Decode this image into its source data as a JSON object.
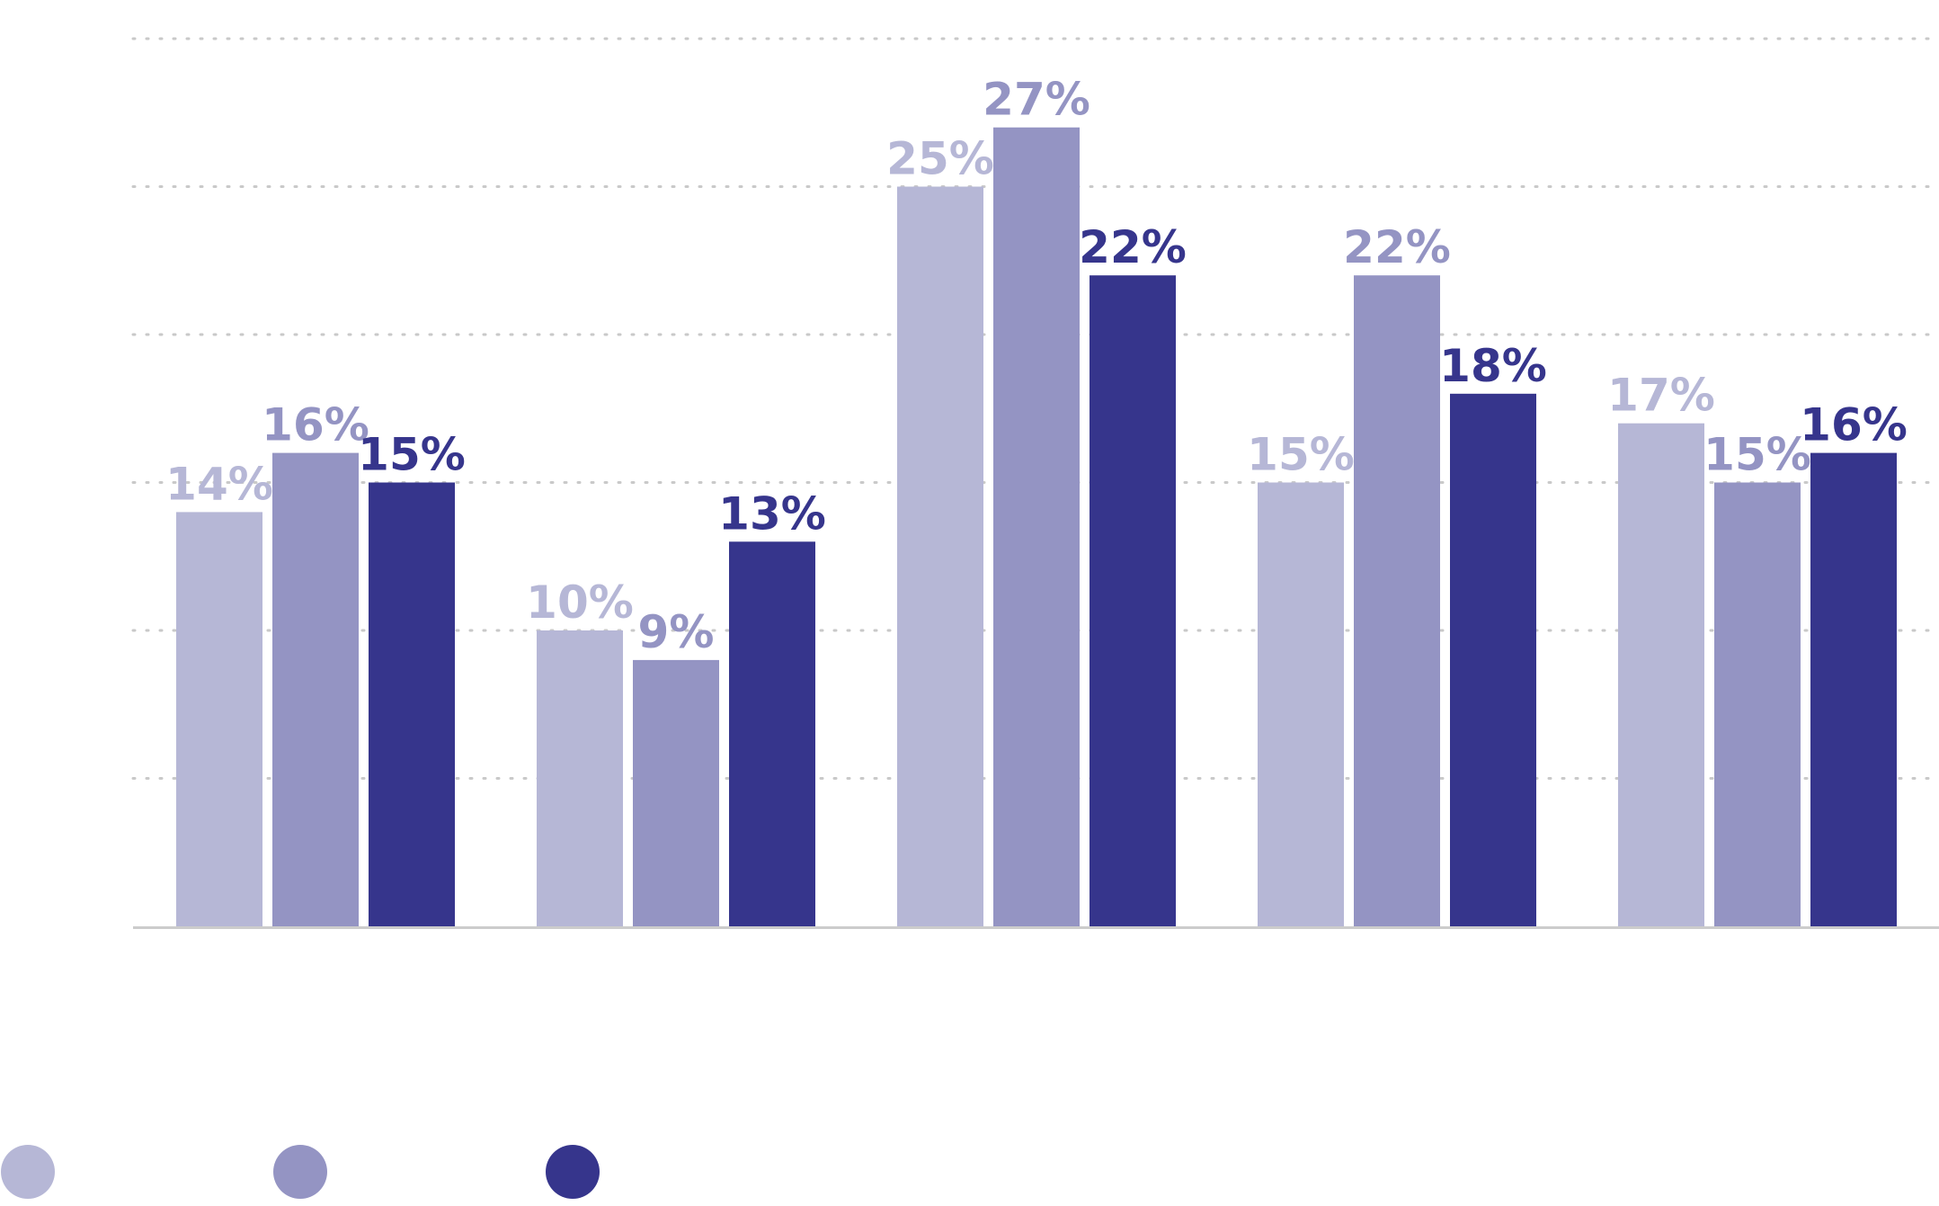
{
  "chart_data": {
    "type": "bar",
    "title": "",
    "xlabel": "",
    "ylabel": "",
    "ylim": [
      0,
      30
    ],
    "grid": true,
    "y_gridline_step": 5,
    "legend_placement": "bottom-left",
    "value_format": "percent",
    "categories": [
      "",
      "",
      "",
      "",
      ""
    ],
    "series": [
      {
        "color": "#b6b7d6",
        "values": [
          14,
          10,
          25,
          15,
          17
        ],
        "labels": [
          "14%",
          "10%",
          "25%",
          "15%",
          "17%"
        ]
      },
      {
        "color": "#9494c3",
        "values": [
          16,
          9,
          27,
          22,
          15
        ],
        "labels": [
          "16%",
          "9%",
          "27%",
          "22%",
          "15%"
        ]
      },
      {
        "color": "#36358c",
        "values": [
          15,
          13,
          22,
          18,
          16
        ],
        "labels": [
          "15%",
          "13%",
          "22%",
          "18%",
          "16%"
        ]
      }
    ]
  },
  "colors": {
    "gridline": "#c9c9c9",
    "baseline": "#cccccc",
    "background": "#ffffff"
  }
}
